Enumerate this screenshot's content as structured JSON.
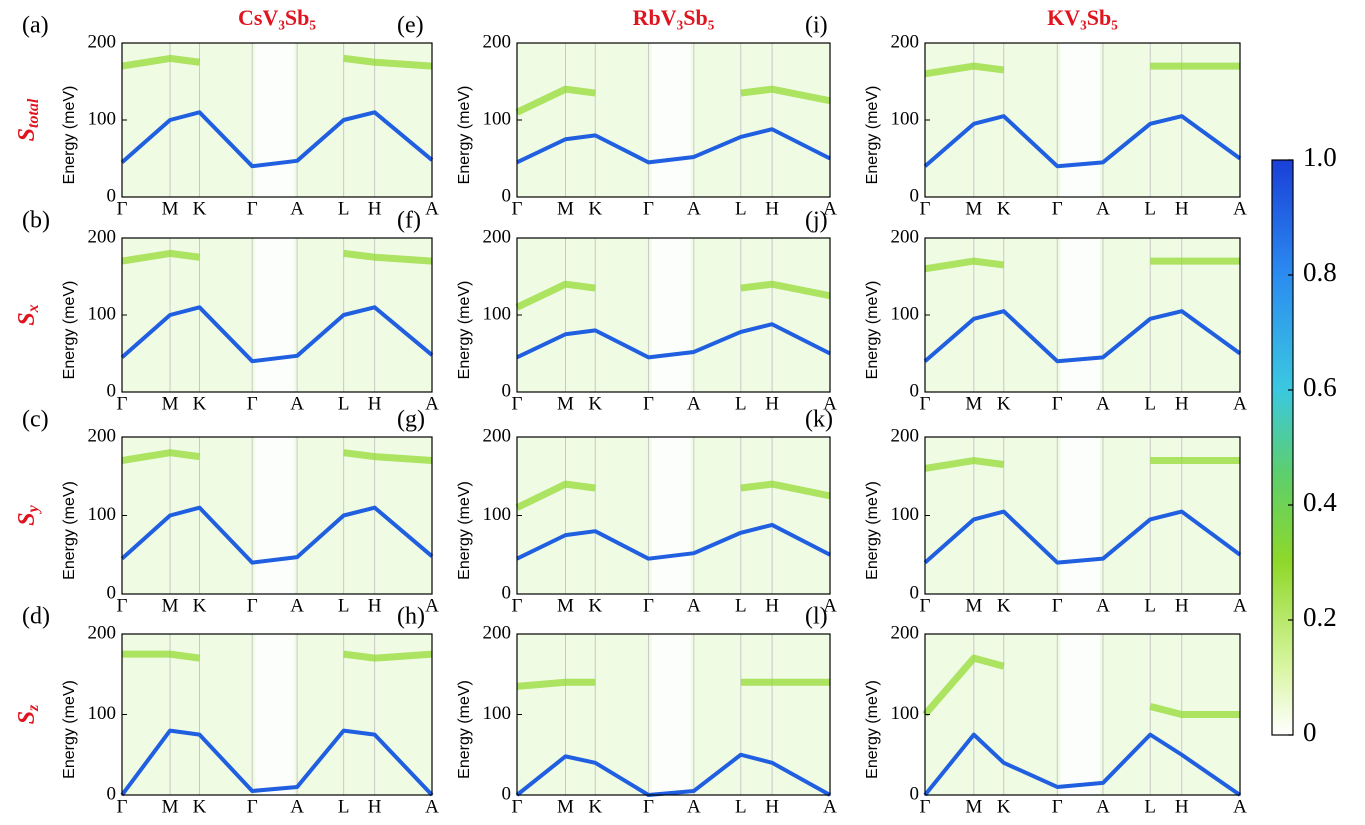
{
  "figure": {
    "columns": [
      "CsV₃Sb₅",
      "RbV₃Sb₅",
      "KV₃Sb₅"
    ],
    "rows": [
      {
        "base": "S",
        "sub": "total"
      },
      {
        "base": "S",
        "sub": "x"
      },
      {
        "base": "S",
        "sub": "y"
      },
      {
        "base": "S",
        "sub": "z"
      }
    ],
    "colorbar": {
      "lim": [
        0,
        1
      ],
      "ticks": [
        0,
        0.2,
        0.4,
        0.6,
        0.8,
        {
          "value": 1,
          "label": "1.0"
        }
      ]
    }
  },
  "chart_data": [
    {
      "type": "line",
      "label": "(a)",
      "ylabel": "Energy (meV)",
      "categories": [
        "Γ",
        "M",
        "K",
        "Γ",
        "A",
        "L",
        "H",
        "A"
      ],
      "ylim": [
        0,
        200
      ],
      "yticks": [
        0,
        100,
        200
      ],
      "series": [
        {
          "color": "#8fd82a",
          "values": [
            170,
            180,
            175,
            null,
            null,
            180,
            175,
            170
          ]
        },
        {
          "color": "#1f5fe0",
          "values": [
            45,
            100,
            110,
            40,
            47,
            100,
            110,
            48
          ]
        }
      ]
    },
    {
      "type": "line",
      "label": "(b)",
      "ylabel": "Energy (meV)",
      "categories": [
        "Γ",
        "M",
        "K",
        "Γ",
        "A",
        "L",
        "H",
        "A"
      ],
      "ylim": [
        0,
        200
      ],
      "yticks": [
        0,
        100,
        200
      ],
      "series": [
        {
          "color": "#8fd82a",
          "values": [
            170,
            180,
            175,
            null,
            null,
            180,
            175,
            170
          ]
        },
        {
          "color": "#1f5fe0",
          "values": [
            45,
            100,
            110,
            40,
            47,
            100,
            110,
            48
          ]
        }
      ]
    },
    {
      "type": "line",
      "label": "(c)",
      "ylabel": "Energy (meV)",
      "categories": [
        "Γ",
        "M",
        "K",
        "Γ",
        "A",
        "L",
        "H",
        "A"
      ],
      "ylim": [
        0,
        200
      ],
      "yticks": [
        0,
        100,
        200
      ],
      "series": [
        {
          "color": "#8fd82a",
          "values": [
            170,
            180,
            175,
            null,
            null,
            180,
            175,
            170
          ]
        },
        {
          "color": "#1f5fe0",
          "values": [
            45,
            100,
            110,
            40,
            47,
            100,
            110,
            48
          ]
        }
      ]
    },
    {
      "type": "line",
      "label": "(d)",
      "ylabel": "Energy (meV)",
      "categories": [
        "Γ",
        "M",
        "K",
        "Γ",
        "A",
        "L",
        "H",
        "A"
      ],
      "ylim": [
        0,
        200
      ],
      "yticks": [
        0,
        100,
        200
      ],
      "series": [
        {
          "color": "#8fd82a",
          "values": [
            175,
            175,
            170,
            null,
            null,
            175,
            170,
            175
          ]
        },
        {
          "color": "#1f5fe0",
          "values": [
            0,
            80,
            75,
            5,
            10,
            80,
            75,
            0
          ]
        }
      ]
    },
    {
      "type": "line",
      "label": "(e)",
      "ylabel": "Energy (meV)",
      "categories": [
        "Γ",
        "M",
        "K",
        "Γ",
        "A",
        "L",
        "H",
        "A"
      ],
      "ylim": [
        0,
        200
      ],
      "yticks": [
        0,
        100,
        200
      ],
      "series": [
        {
          "color": "#8fd82a",
          "values": [
            110,
            140,
            135,
            null,
            null,
            135,
            140,
            125
          ]
        },
        {
          "color": "#1f5fe0",
          "values": [
            45,
            75,
            80,
            45,
            52,
            78,
            88,
            50
          ]
        }
      ]
    },
    {
      "type": "line",
      "label": "(f)",
      "ylabel": "Energy (meV)",
      "categories": [
        "Γ",
        "M",
        "K",
        "Γ",
        "A",
        "L",
        "H",
        "A"
      ],
      "ylim": [
        0,
        200
      ],
      "yticks": [
        0,
        100,
        200
      ],
      "series": [
        {
          "color": "#8fd82a",
          "values": [
            110,
            140,
            135,
            null,
            null,
            135,
            140,
            125
          ]
        },
        {
          "color": "#1f5fe0",
          "values": [
            45,
            75,
            80,
            45,
            52,
            78,
            88,
            50
          ]
        }
      ]
    },
    {
      "type": "line",
      "label": "(g)",
      "ylabel": "Energy (meV)",
      "categories": [
        "Γ",
        "M",
        "K",
        "Γ",
        "A",
        "L",
        "H",
        "A"
      ],
      "ylim": [
        0,
        200
      ],
      "yticks": [
        0,
        100,
        200
      ],
      "series": [
        {
          "color": "#8fd82a",
          "values": [
            110,
            140,
            135,
            null,
            null,
            135,
            140,
            125
          ]
        },
        {
          "color": "#1f5fe0",
          "values": [
            45,
            75,
            80,
            45,
            52,
            78,
            88,
            50
          ]
        }
      ]
    },
    {
      "type": "line",
      "label": "(h)",
      "ylabel": "Energy (meV)",
      "categories": [
        "Γ",
        "M",
        "K",
        "Γ",
        "A",
        "L",
        "H",
        "A"
      ],
      "ylim": [
        0,
        200
      ],
      "yticks": [
        0,
        100,
        200
      ],
      "series": [
        {
          "color": "#8fd82a",
          "values": [
            135,
            140,
            140,
            null,
            null,
            140,
            140,
            140
          ]
        },
        {
          "color": "#1f5fe0",
          "values": [
            0,
            48,
            40,
            0,
            5,
            50,
            40,
            0
          ]
        }
      ]
    },
    {
      "type": "line",
      "label": "(i)",
      "ylabel": "Energy (meV)",
      "categories": [
        "Γ",
        "M",
        "K",
        "Γ",
        "A",
        "L",
        "H",
        "A"
      ],
      "ylim": [
        0,
        200
      ],
      "yticks": [
        0,
        100,
        200
      ],
      "series": [
        {
          "color": "#8fd82a",
          "values": [
            160,
            170,
            165,
            null,
            null,
            170,
            170,
            170
          ]
        },
        {
          "color": "#1f5fe0",
          "values": [
            40,
            95,
            105,
            40,
            45,
            95,
            105,
            50
          ]
        }
      ]
    },
    {
      "type": "line",
      "label": "(j)",
      "ylabel": "Energy (meV)",
      "categories": [
        "Γ",
        "M",
        "K",
        "Γ",
        "A",
        "L",
        "H",
        "A"
      ],
      "ylim": [
        0,
        200
      ],
      "yticks": [
        0,
        100,
        200
      ],
      "series": [
        {
          "color": "#8fd82a",
          "values": [
            160,
            170,
            165,
            null,
            null,
            170,
            170,
            170
          ]
        },
        {
          "color": "#1f5fe0",
          "values": [
            40,
            95,
            105,
            40,
            45,
            95,
            105,
            50
          ]
        }
      ]
    },
    {
      "type": "line",
      "label": "(k)",
      "ylabel": "Energy (meV)",
      "categories": [
        "Γ",
        "M",
        "K",
        "Γ",
        "A",
        "L",
        "H",
        "A"
      ],
      "ylim": [
        0,
        200
      ],
      "yticks": [
        0,
        100,
        200
      ],
      "series": [
        {
          "color": "#8fd82a",
          "values": [
            160,
            170,
            165,
            null,
            null,
            170,
            170,
            170
          ]
        },
        {
          "color": "#1f5fe0",
          "values": [
            40,
            95,
            105,
            40,
            45,
            95,
            105,
            50
          ]
        }
      ]
    },
    {
      "type": "line",
      "label": "(l)",
      "ylabel": "Energy (meV)",
      "categories": [
        "Γ",
        "M",
        "K",
        "Γ",
        "A",
        "L",
        "H",
        "A"
      ],
      "ylim": [
        0,
        200
      ],
      "yticks": [
        0,
        100,
        200
      ],
      "series": [
        {
          "color": "#8fd82a",
          "values": [
            100,
            170,
            160,
            null,
            null,
            110,
            100,
            100
          ]
        },
        {
          "color": "#1f5fe0",
          "values": [
            0,
            75,
            40,
            10,
            15,
            75,
            50,
            0
          ]
        }
      ]
    }
  ]
}
